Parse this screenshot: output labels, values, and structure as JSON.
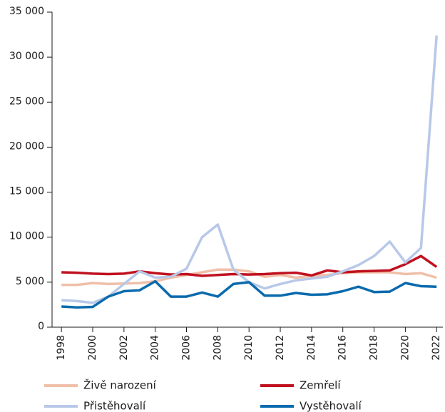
{
  "chart_data": {
    "type": "line",
    "x": [
      1998,
      1999,
      2000,
      2001,
      2002,
      2003,
      2004,
      2005,
      2006,
      2007,
      2008,
      2009,
      2010,
      2011,
      2012,
      2013,
      2014,
      2015,
      2016,
      2017,
      2018,
      2019,
      2020,
      2021,
      2022
    ],
    "series": [
      {
        "name": "Živě narození",
        "color": "#f0bfa8",
        "values": [
          4700,
          4700,
          4900,
          4800,
          4850,
          4900,
          5100,
          5500,
          5800,
          6100,
          6400,
          6400,
          6200,
          5600,
          5800,
          5500,
          5700,
          5800,
          6000,
          6100,
          6100,
          6100,
          5900,
          6000,
          5500
        ]
      },
      {
        "name": "Zemřelí",
        "color": "#c0111f",
        "values": [
          6100,
          6050,
          5950,
          5900,
          5950,
          6200,
          6000,
          5850,
          5900,
          5700,
          5800,
          5900,
          5850,
          5900,
          6000,
          6050,
          5750,
          6300,
          6100,
          6200,
          6250,
          6300,
          7000,
          7900,
          6700
        ]
      },
      {
        "name": "Přistěhovalí",
        "color": "#b8c8e8",
        "values": [
          3000,
          2900,
          2700,
          3400,
          4800,
          6200,
          5500,
          5600,
          6500,
          10000,
          11400,
          6400,
          5000,
          4300,
          4800,
          5200,
          5400,
          5600,
          6200,
          6900,
          7900,
          9500,
          7200,
          8800,
          32400
        ]
      },
      {
        "name": "Vystěhovalí",
        "color": "#0a6aad",
        "values": [
          2300,
          2200,
          2250,
          3400,
          4000,
          4100,
          5100,
          3400,
          3400,
          3850,
          3400,
          4800,
          5000,
          3500,
          3500,
          3800,
          3600,
          3650,
          4000,
          4500,
          3900,
          3950,
          4900,
          4550,
          4500
        ]
      }
    ],
    "xlim": [
      1997.4,
      2022.4
    ],
    "xticks": [
      1998,
      2000,
      2002,
      2004,
      2006,
      2008,
      2010,
      2012,
      2014,
      2016,
      2018,
      2020,
      2022
    ],
    "ylim": [
      0,
      35000
    ],
    "yticks": [
      0,
      {
        "value": 5000,
        "label": "5 000"
      },
      {
        "value": 10000,
        "label": "10 000"
      },
      {
        "value": 15000,
        "label": "15 000"
      },
      {
        "value": 20000,
        "label": "20 000"
      },
      {
        "value": 25000,
        "label": "25 000"
      },
      {
        "value": 30000,
        "label": "30 000"
      },
      {
        "value": 35000,
        "label": "35 000"
      }
    ],
    "legend": "bottom"
  }
}
